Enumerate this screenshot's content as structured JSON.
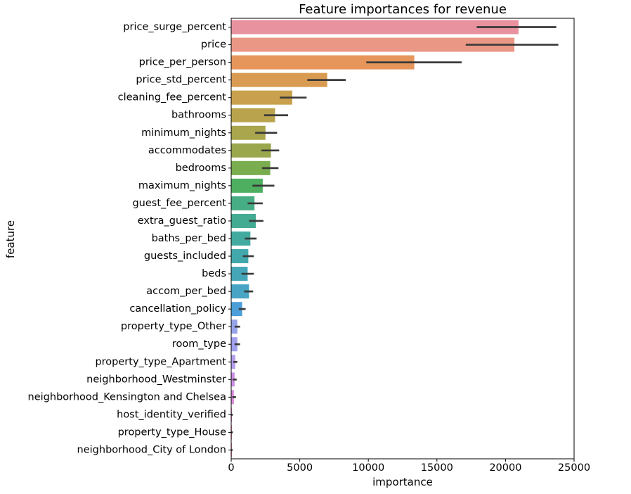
{
  "chart_data": {
    "type": "bar",
    "orientation": "horizontal",
    "title": "Feature importances for revenue",
    "xlabel": "importance",
    "ylabel": "feature",
    "xlim": [
      0,
      25000
    ],
    "xticks": [
      0,
      5000,
      10000,
      15000,
      20000,
      25000
    ],
    "grid": false,
    "categories": [
      "price_surge_percent",
      "price",
      "price_per_person",
      "price_std_percent",
      "cleaning_fee_percent",
      "bathrooms",
      "minimum_nights",
      "accommodates",
      "bedrooms",
      "maximum_nights",
      "guest_fee_percent",
      "extra_guest_ratio",
      "baths_per_bed",
      "guests_included",
      "beds",
      "accom_per_bed",
      "cancellation_policy",
      "property_type_Other",
      "room_type",
      "property_type_Apartment",
      "neighborhood_Westminster",
      "neighborhood_Kensington and Chelsea",
      "host_identity_verified",
      "property_type_House",
      "neighborhood_City of London"
    ],
    "values": [
      20950,
      20650,
      13350,
      7000,
      4450,
      3200,
      2500,
      2900,
      2850,
      2300,
      1700,
      1800,
      1400,
      1250,
      1200,
      1300,
      800,
      450,
      450,
      300,
      250,
      200,
      60,
      60,
      50
    ],
    "error_low": [
      17900,
      17100,
      9850,
      5550,
      3550,
      2400,
      1750,
      2200,
      2250,
      1550,
      1200,
      1300,
      1000,
      850,
      750,
      950,
      550,
      250,
      250,
      150,
      100,
      80,
      10,
      10,
      10
    ],
    "error_high": [
      23700,
      23850,
      16800,
      8350,
      5500,
      4150,
      3350,
      3500,
      3450,
      3150,
      2300,
      2350,
      1850,
      1650,
      1650,
      1600,
      1050,
      650,
      650,
      450,
      400,
      350,
      120,
      120,
      100
    ],
    "colors": [
      "#e8919f",
      "#ea9785",
      "#e6965a",
      "#d99b52",
      "#c9a04d",
      "#b9a44d",
      "#a9a64d",
      "#9aa74c",
      "#79ad4e",
      "#4daf5f",
      "#46ad84",
      "#44ab93",
      "#43aaa0",
      "#43a8ac",
      "#45a6b8",
      "#48a4c4",
      "#4c9ed8",
      "#97a3e8",
      "#a0a0ee",
      "#b39ded",
      "#cb8ee6",
      "#d98bd9",
      "#e28ac7",
      "#e88bb6",
      "#ea8ca9"
    ],
    "error_color": "#3a3a3a"
  }
}
